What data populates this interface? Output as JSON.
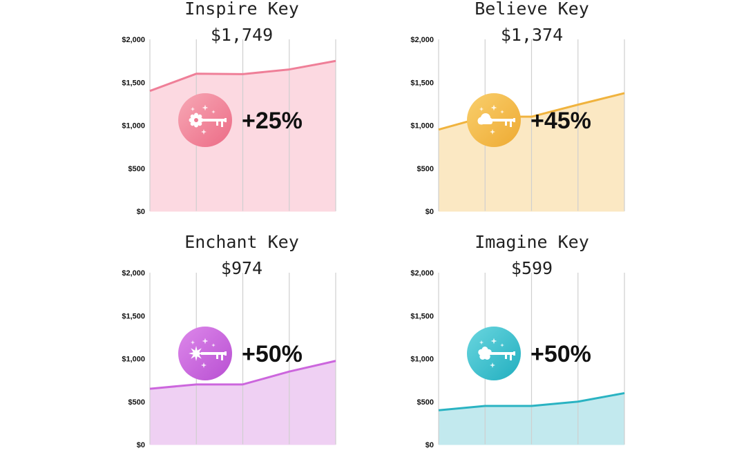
{
  "chart_data": [
    {
      "type": "area",
      "title": "Inspire Key",
      "subtitle": "$1,749",
      "x": [
        0,
        1,
        2,
        3,
        4
      ],
      "values": [
        1400,
        1600,
        1595,
        1650,
        1749
      ],
      "ylim": [
        0,
        2000
      ],
      "yticks": [
        "$0",
        "$500",
        "$1,000",
        "$1,500",
        "$2,000"
      ],
      "grid": true,
      "annotation": "+25%",
      "color": "#ef7f98",
      "fill": "#fcd9e1",
      "badge": {
        "grad_light": "#f7a8b5",
        "grad_dark": "#ec6b86",
        "icon": "gear-key-icon"
      }
    },
    {
      "type": "area",
      "title": "Believe Key",
      "subtitle": "$1,374",
      "x": [
        0,
        1,
        2,
        3,
        4
      ],
      "values": [
        950,
        1100,
        1100,
        1240,
        1374
      ],
      "ylim": [
        0,
        2000
      ],
      "yticks": [
        "$0",
        "$500",
        "$1,000",
        "$1,500",
        "$2,000"
      ],
      "grid": true,
      "annotation": "+45%",
      "color": "#f0b33e",
      "fill": "#fbe8c3",
      "badge": {
        "grad_light": "#f9cf6d",
        "grad_dark": "#eeaa32",
        "icon": "cloud-key-icon"
      }
    },
    {
      "type": "area",
      "title": "Enchant Key",
      "subtitle": "$974",
      "x": [
        0,
        1,
        2,
        3,
        4
      ],
      "values": [
        650,
        700,
        700,
        850,
        974
      ],
      "ylim": [
        0,
        2000
      ],
      "yticks": [
        "$0",
        "$500",
        "$1,000",
        "$1,500",
        "$2,000"
      ],
      "grid": true,
      "annotation": "+50%",
      "color": "#cc66dd",
      "fill": "#efd0f3",
      "badge": {
        "grad_light": "#dd88ea",
        "grad_dark": "#b84fd2",
        "icon": "star-key-icon"
      }
    },
    {
      "type": "area",
      "title": "Imagine Key",
      "subtitle": "$599",
      "x": [
        0,
        1,
        2,
        3,
        4
      ],
      "values": [
        400,
        450,
        450,
        500,
        599
      ],
      "ylim": [
        0,
        2000
      ],
      "yticks": [
        "$0",
        "$500",
        "$1,000",
        "$1,500",
        "$2,000"
      ],
      "grid": true,
      "annotation": "+50%",
      "color": "#2ab3c2",
      "fill": "#c2e9ee",
      "badge": {
        "grad_light": "#6ad6df",
        "grad_dark": "#21aebf",
        "icon": "flower-key-icon"
      }
    }
  ]
}
